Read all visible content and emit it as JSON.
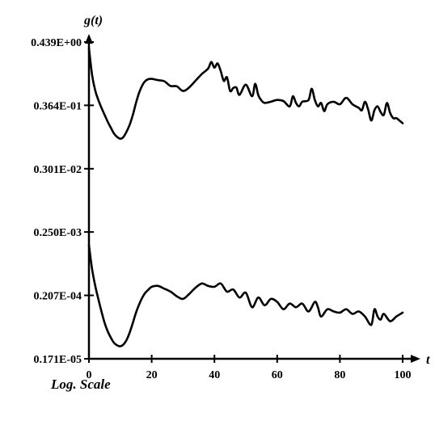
{
  "chart_data": {
    "type": "line",
    "ylabel": "g(t)",
    "xlabel": "t",
    "note": "Log. Scale",
    "y_scale": "log",
    "grid": false,
    "x_ticks": [
      "0",
      "20",
      "40",
      "60",
      "80",
      "100"
    ],
    "y_ticks": [
      "0.439E+00",
      "0.364E-01",
      "0.301E-02",
      "0.250E-03",
      "0.207E-04",
      "0.171E-05"
    ],
    "xlim": [
      0,
      100
    ],
    "ylim": [
      1.71e-06,
      0.439
    ],
    "series": [
      {
        "x": [
          0,
          1,
          2,
          3,
          4,
          5,
          6,
          7,
          8,
          9,
          10,
          11,
          12,
          13,
          14,
          15,
          16,
          17,
          18,
          19,
          20,
          22,
          24,
          26,
          28,
          30,
          32,
          34,
          36,
          38,
          39,
          40,
          41,
          42,
          43,
          44,
          45,
          46,
          47,
          48,
          50,
          52,
          53,
          54,
          55,
          56,
          58,
          60,
          62,
          64,
          65,
          66,
          67,
          68,
          70,
          71,
          72,
          73,
          74,
          75,
          76,
          78,
          80,
          82,
          84,
          86,
          87,
          88,
          89,
          90,
          91,
          92,
          93,
          94,
          95,
          96,
          97,
          98,
          99,
          100
        ],
        "y": [
          0.35,
          0.12,
          0.065,
          0.045,
          0.033,
          0.025,
          0.019,
          0.015,
          0.012,
          0.0105,
          0.0098,
          0.0105,
          0.013,
          0.017,
          0.025,
          0.04,
          0.06,
          0.08,
          0.095,
          0.102,
          0.103,
          0.098,
          0.094,
          0.078,
          0.077,
          0.064,
          0.074,
          0.096,
          0.125,
          0.155,
          0.2,
          0.16,
          0.19,
          0.14,
          0.095,
          0.11,
          0.064,
          0.072,
          0.073,
          0.055,
          0.082,
          0.052,
          0.085,
          0.054,
          0.044,
          0.04,
          0.042,
          0.045,
          0.043,
          0.035,
          0.052,
          0.04,
          0.035,
          0.042,
          0.045,
          0.07,
          0.045,
          0.035,
          0.04,
          0.029,
          0.038,
          0.042,
          0.038,
          0.049,
          0.038,
          0.033,
          0.03,
          0.042,
          0.031,
          0.02,
          0.03,
          0.035,
          0.028,
          0.025,
          0.04,
          0.027,
          0.022,
          0.022,
          0.02,
          0.018
        ]
      },
      {
        "x": [
          0,
          1,
          2,
          3,
          4,
          5,
          6,
          7,
          8,
          9,
          10,
          11,
          12,
          13,
          14,
          15,
          16,
          17,
          18,
          19,
          20,
          22,
          24,
          26,
          28,
          30,
          32,
          34,
          36,
          38,
          40,
          42,
          44,
          46,
          48,
          50,
          52,
          54,
          56,
          58,
          60,
          62,
          64,
          66,
          68,
          70,
          72,
          73,
          74,
          76,
          78,
          80,
          82,
          84,
          86,
          88,
          90,
          91,
          92,
          93,
          94,
          96,
          98,
          100
        ],
        "y": [
          0.00015,
          5.8e-05,
          3e-05,
          1.8e-05,
          1.1e-05,
          7e-06,
          5e-06,
          3.9e-06,
          3.2e-06,
          2.9e-06,
          2.8e-06,
          3e-06,
          3.6e-06,
          4.8e-06,
          7e-06,
          1.05e-05,
          1.45e-05,
          1.9e-05,
          2.3e-05,
          2.6e-05,
          2.9e-05,
          3e-05,
          2.7e-05,
          2.4e-05,
          2e-05,
          1.8e-05,
          2.2e-05,
          2.8e-05,
          3.3e-05,
          3e-05,
          2.9e-05,
          3.3e-05,
          2.4e-05,
          2.6e-05,
          1.9e-05,
          2.3e-05,
          1.3e-05,
          1.9e-05,
          1.4e-05,
          1.8e-05,
          1.6e-05,
          1.2e-05,
          1.5e-05,
          1.3e-05,
          1.5e-05,
          1.1e-05,
          1.6e-05,
          1.3e-05,
          9e-06,
          1.2e-05,
          1.1e-05,
          1.05e-05,
          1.2e-05,
          1e-05,
          1.1e-05,
          9e-06,
          6.5e-06,
          1.2e-05,
          9e-06,
          8e-06,
          1e-05,
          7.5e-06,
          9e-06,
          1.05e-05
        ]
      }
    ]
  }
}
